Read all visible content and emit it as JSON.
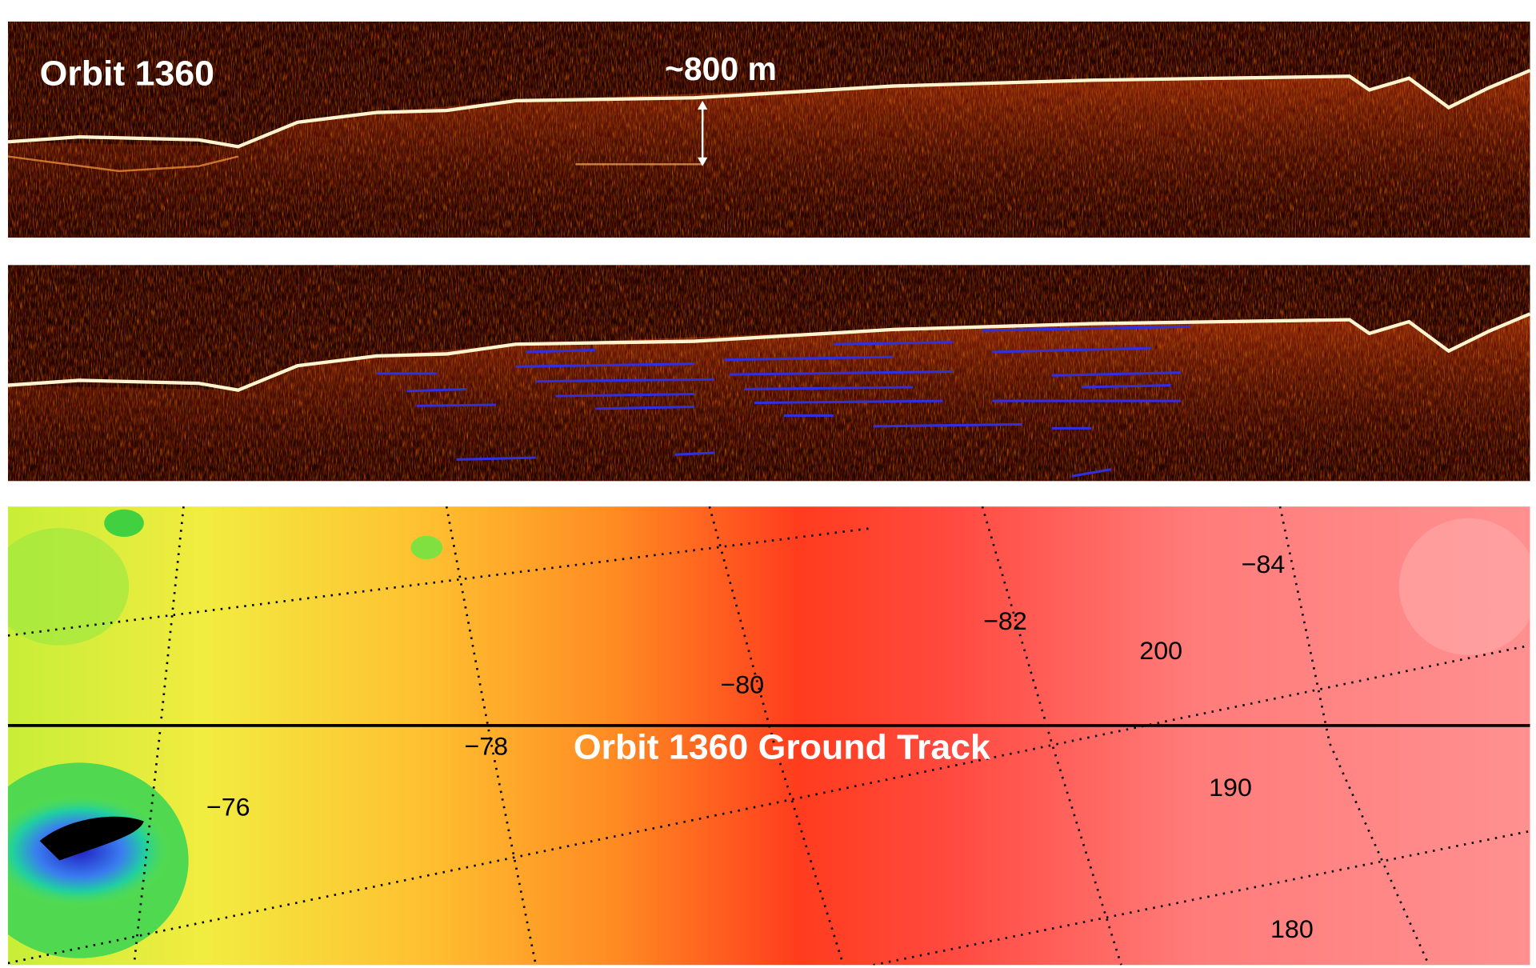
{
  "panels": [
    {
      "label": "Orbit 1360",
      "annotation": "~800 m"
    },
    {}
  ],
  "map": {
    "title": "Orbit 1360 Ground Track",
    "latitude_labels": [
      "−84",
      "−82",
      "−80",
      "−78",
      "−76"
    ],
    "longitude_labels": [
      "200",
      "190",
      "180"
    ]
  }
}
